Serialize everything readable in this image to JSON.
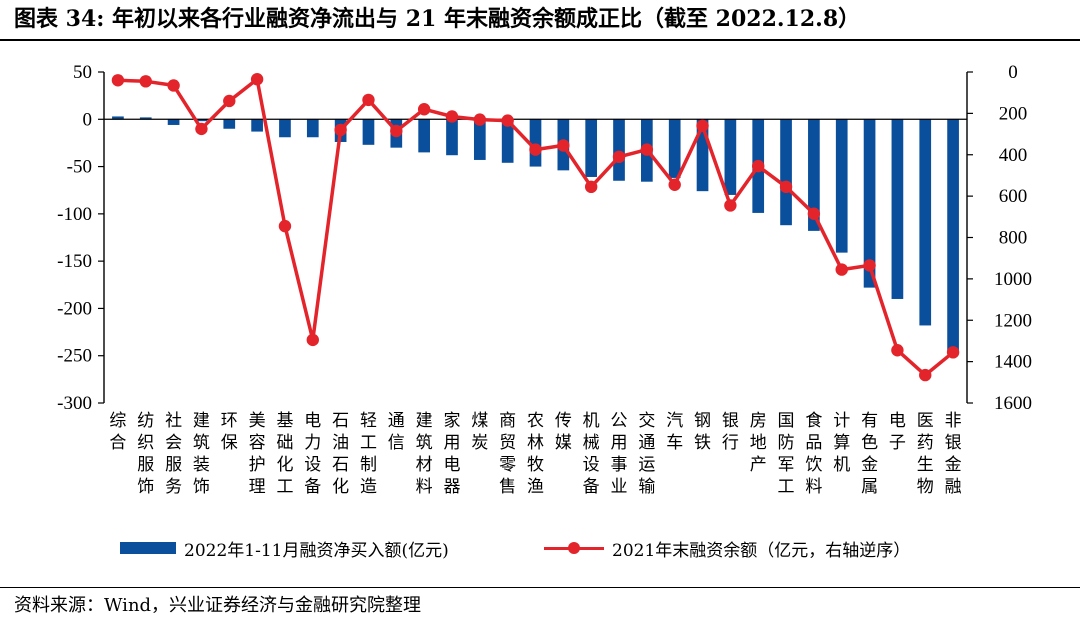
{
  "header": {
    "title": "图表 34: 年初以来各行业融资净流出与 21 年末融资余额成正比（截至 2022.12.8）"
  },
  "footer": {
    "source": "资料来源：Wind，兴业证券经济与金融研究院整理"
  },
  "colors": {
    "bar": "#0a4f9c",
    "line": "#e3242b"
  },
  "chart_data": {
    "type": "bar+line",
    "title": "年初以来各行业融资净流出与 21 年末融资余额成正比（截至 2022.12.8）",
    "categories": [
      "综合",
      "纺织服饰",
      "社会服务",
      "建筑装饰",
      "环保",
      "美容护理",
      "基础化工",
      "电力设备",
      "石油石化",
      "轻工制造",
      "通信",
      "建筑材料",
      "家用电器",
      "煤炭",
      "商贸零售",
      "农林牧渔",
      "传媒",
      "机械设备",
      "公用事业",
      "交通运输",
      "汽车",
      "钢铁",
      "银行",
      "房地产",
      "国防军工",
      "食品饮料",
      "计算机",
      "有色金属",
      "电子",
      "医药生物",
      "非银金融"
    ],
    "series": [
      {
        "name": "2022年1-11月融资净买入额(亿元)",
        "type": "bar",
        "axis": "left",
        "values": [
          3,
          2,
          -6,
          -2,
          -10,
          -13,
          -19,
          -19,
          -24,
          -27,
          -30,
          -35,
          -38,
          -43,
          -46,
          -50,
          -54,
          -61,
          -65,
          -66,
          -62,
          -76,
          -80,
          -99,
          -112,
          -118,
          -141,
          -178,
          -190,
          -218,
          -245
        ]
      },
      {
        "name": "2021年末融资余额（亿元，右轴逆序）",
        "type": "line",
        "axis": "right",
        "values": [
          40,
          45,
          65,
          275,
          140,
          35,
          745,
          1295,
          280,
          135,
          285,
          180,
          215,
          230,
          235,
          375,
          355,
          555,
          410,
          375,
          545,
          260,
          645,
          455,
          555,
          685,
          955,
          935,
          1345,
          1465,
          1355
        ]
      }
    ],
    "y_left": {
      "min": -300,
      "max": 50,
      "ticks": [
        "50",
        "0",
        "-50",
        "-100",
        "-150",
        "-200",
        "-250",
        "-300"
      ]
    },
    "y_right": {
      "min": 0,
      "max": 1600,
      "reversed": true,
      "ticks": [
        "0",
        "200",
        "400",
        "600",
        "800",
        "1000",
        "1200",
        "1400",
        "1600"
      ]
    },
    "legend": [
      "2022年1-11月融资净买入额(亿元)",
      "2021年末融资余额（亿元，右轴逆序）"
    ],
    "legend_position": "bottom"
  }
}
